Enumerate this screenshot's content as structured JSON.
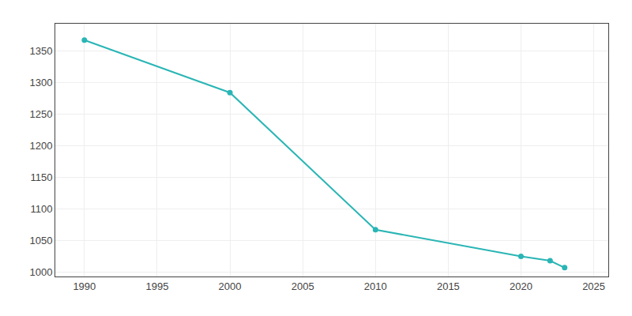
{
  "chart_data": {
    "type": "line",
    "x": [
      1990,
      2000,
      2010,
      2020,
      2022,
      2023
    ],
    "values": [
      1367,
      1284,
      1067,
      1025,
      1018,
      1007
    ],
    "color": "#2ab5b5",
    "marker": "circle",
    "xlim": [
      1988,
      2026
    ],
    "ylim": [
      993,
      1393
    ],
    "xticks": [
      1990,
      1995,
      2000,
      2005,
      2010,
      2015,
      2020,
      2025
    ],
    "yticks": [
      1000,
      1050,
      1100,
      1150,
      1200,
      1250,
      1300,
      1350
    ],
    "grid": true
  }
}
